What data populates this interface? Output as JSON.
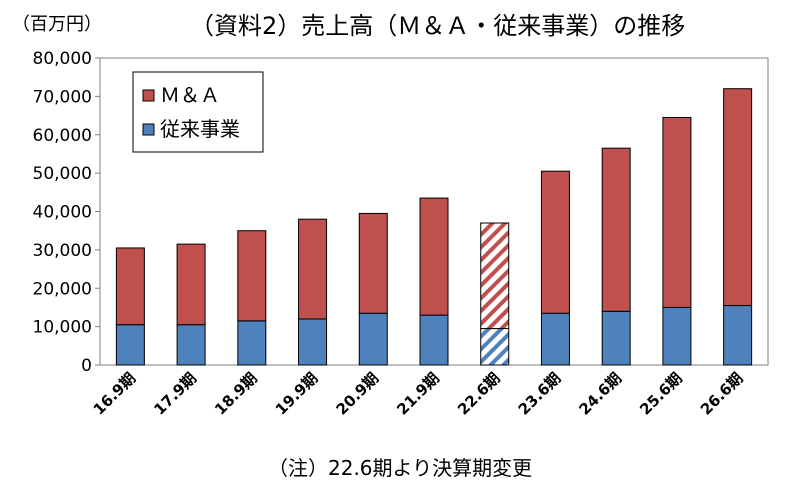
{
  "title": "（資料2）売上高（Ｍ＆Ａ・従来事業）の推移",
  "unit_label": "（百万円）",
  "note": "（注）22.6期より決算期変更",
  "chart_data": {
    "type": "bar",
    "stacked": true,
    "title": "（資料2）売上高（Ｍ＆Ａ・従来事業）の推移",
    "ylabel": "（百万円）",
    "xlabel": "",
    "ylim": [
      0,
      80000
    ],
    "yticks": [
      0,
      10000,
      20000,
      30000,
      40000,
      50000,
      60000,
      70000,
      80000
    ],
    "ytick_labels": [
      "0",
      "10,000",
      "20,000",
      "30,000",
      "40,000",
      "50,000",
      "60,000",
      "70,000",
      "80,000"
    ],
    "grid": false,
    "legend": "top-left",
    "categories": [
      "16.9期",
      "17.9期",
      "18.9期",
      "19.9期",
      "20.9期",
      "21.9期",
      "22.6期",
      "23.6期",
      "24.6期",
      "25.6期",
      "26.6期"
    ],
    "series": [
      {
        "name": "従来事業",
        "color": "#4f81bd",
        "values": [
          10500,
          10500,
          11500,
          12000,
          13500,
          13000,
          9500,
          13500,
          14000,
          15000,
          15500
        ]
      },
      {
        "name": "Ｍ＆Ａ",
        "color": "#c0504d",
        "values": [
          20000,
          21000,
          23500,
          26000,
          26000,
          30500,
          27500,
          37000,
          42500,
          49500,
          56500
        ]
      }
    ],
    "hatched_categories": [
      "22.6期"
    ]
  }
}
